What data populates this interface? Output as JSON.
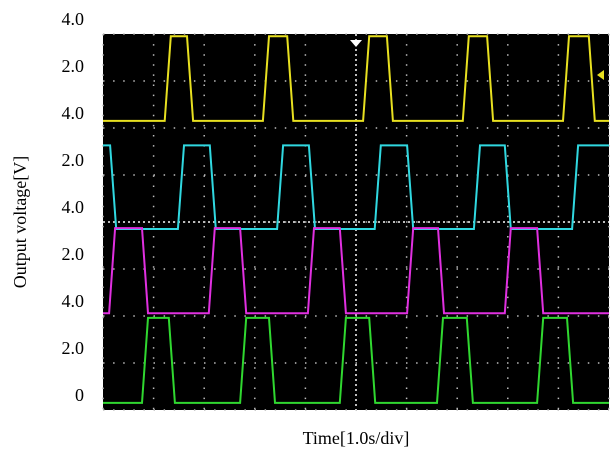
{
  "chart_data": {
    "type": "line",
    "y_label": "Output voltage[V]",
    "x_label": "Time[1.0s/div]",
    "xlim": [
      0,
      10
    ],
    "xticks": [
      0,
      1,
      2,
      3,
      4,
      5,
      6,
      7,
      8,
      9,
      10
    ],
    "ylim": [
      0,
      8
    ],
    "yticks": [
      0,
      {
        "value": 1,
        "label": "2.0"
      },
      {
        "value": 2,
        "label": "4.0"
      },
      {
        "value": 3,
        "label": "2.0"
      },
      {
        "value": 4,
        "label": "4.0"
      },
      {
        "value": 5,
        "label": "2.0"
      },
      {
        "value": 6,
        "label": "4.0"
      },
      {
        "value": 7,
        "label": "2.0"
      },
      {
        "value": 8,
        "label": "4.0"
      }
    ],
    "grid": true,
    "series": [
      {
        "color": "#e8e020",
        "x": [
          0,
          1.22,
          1.34,
          1.66,
          1.78,
          3.16,
          3.28,
          3.64,
          3.76,
          5.14,
          5.26,
          5.61,
          5.73,
          7.11,
          7.23,
          7.59,
          7.71,
          9.09,
          9.21,
          9.6,
          9.72,
          10
        ],
        "values": [
          6.15,
          6.15,
          7.95,
          7.95,
          6.15,
          6.15,
          7.95,
          7.95,
          6.15,
          6.15,
          7.95,
          7.95,
          6.15,
          6.15,
          7.95,
          7.95,
          6.15,
          6.15,
          7.95,
          7.95,
          6.15,
          6.15
        ]
      },
      {
        "color": "#30d8e0",
        "x": [
          0,
          0.14,
          0.26,
          1.48,
          1.6,
          2.11,
          2.23,
          3.44,
          3.56,
          4.07,
          4.19,
          5.37,
          5.49,
          6.01,
          6.13,
          7.33,
          7.45,
          7.94,
          8.06,
          9.27,
          9.39,
          10
        ],
        "values": [
          5.63,
          5.63,
          3.85,
          3.85,
          5.63,
          5.63,
          3.85,
          3.85,
          5.63,
          5.63,
          3.85,
          3.85,
          5.63,
          5.63,
          3.85,
          3.85,
          5.63,
          5.63,
          3.85,
          3.85,
          5.63,
          5.63
        ]
      },
      {
        "color": "#e030e0",
        "x": [
          0,
          0.12,
          0.24,
          0.77,
          0.89,
          2.09,
          2.21,
          2.71,
          2.83,
          4.05,
          4.17,
          4.68,
          4.8,
          6.01,
          6.13,
          6.62,
          6.74,
          7.94,
          8.06,
          8.58,
          8.7,
          10
        ],
        "values": [
          2.06,
          2.06,
          3.87,
          3.87,
          2.06,
          2.06,
          3.87,
          3.87,
          2.06,
          2.06,
          3.87,
          3.87,
          2.06,
          2.06,
          3.87,
          3.87,
          2.06,
          2.06,
          3.87,
          3.87,
          2.06,
          2.06
        ]
      },
      {
        "color": "#30d830",
        "x": [
          0,
          0.77,
          0.89,
          1.3,
          1.42,
          2.71,
          2.83,
          3.28,
          3.4,
          4.68,
          4.8,
          5.26,
          5.38,
          6.6,
          6.72,
          7.19,
          7.31,
          8.58,
          8.7,
          9.17,
          9.29,
          10
        ],
        "values": [
          0.15,
          0.15,
          1.96,
          1.96,
          0.15,
          0.15,
          1.96,
          1.96,
          0.15,
          0.15,
          1.96,
          1.96,
          0.15,
          0.15,
          1.96,
          1.96,
          0.15,
          0.15,
          1.96,
          1.96,
          0.15,
          0.15
        ]
      }
    ]
  }
}
